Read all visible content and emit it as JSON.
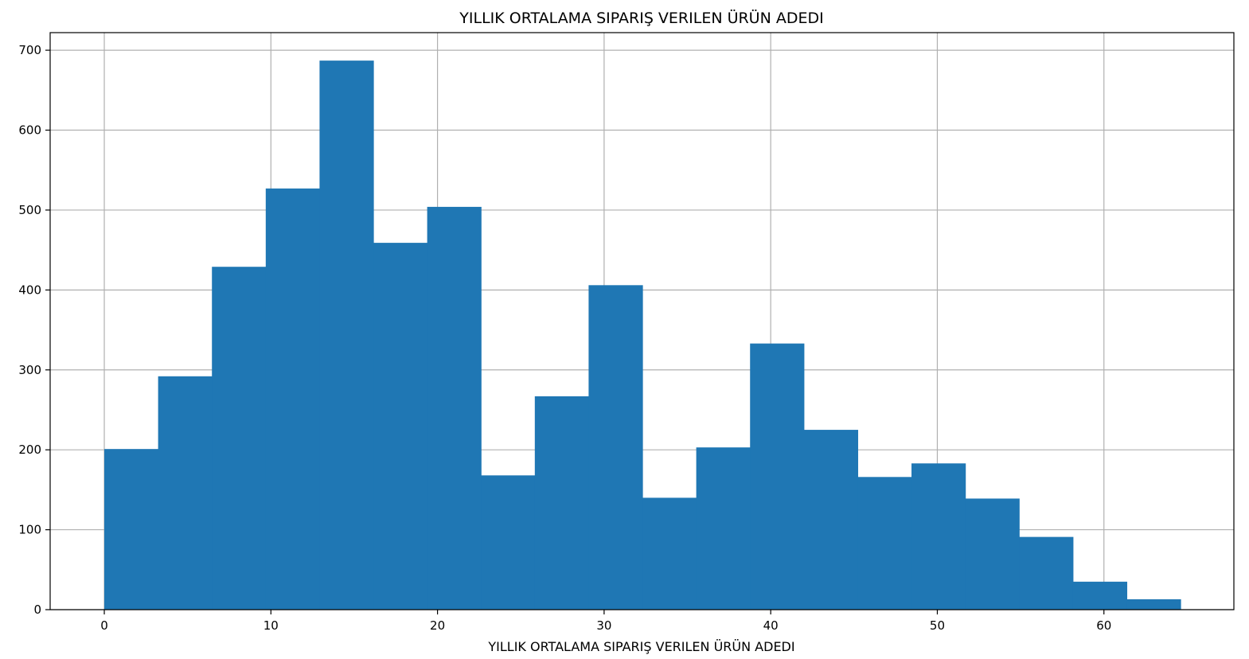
{
  "chart_data": {
    "type": "bar",
    "title": "YILLIK ORTALAMA SIPARIŞ VERILEN ÜRÜN ADEDI",
    "xlabel": "YILLIK ORTALAMA SIPARIŞ VERILEN ÜRÜN ADEDI",
    "ylabel": "",
    "xlim": [
      -3.25,
      67.8
    ],
    "ylim": [
      0,
      722
    ],
    "grid": true,
    "bar_color": "#1f77b4",
    "bin_start": 0,
    "bin_width": 3.23,
    "values": [
      201,
      292,
      429,
      527,
      687,
      459,
      504,
      168,
      267,
      406,
      140,
      203,
      333,
      225,
      166,
      183,
      139,
      91,
      35,
      13
    ],
    "x_ticks": [
      0,
      10,
      20,
      30,
      40,
      50,
      60
    ],
    "x_tick_labels": [
      "0",
      "10",
      "20",
      "30",
      "40",
      "50",
      "60"
    ],
    "y_ticks": [
      0,
      100,
      200,
      300,
      400,
      500,
      600,
      700
    ],
    "y_tick_labels": [
      "0",
      "100",
      "200",
      "300",
      "400",
      "500",
      "600",
      "700"
    ]
  }
}
